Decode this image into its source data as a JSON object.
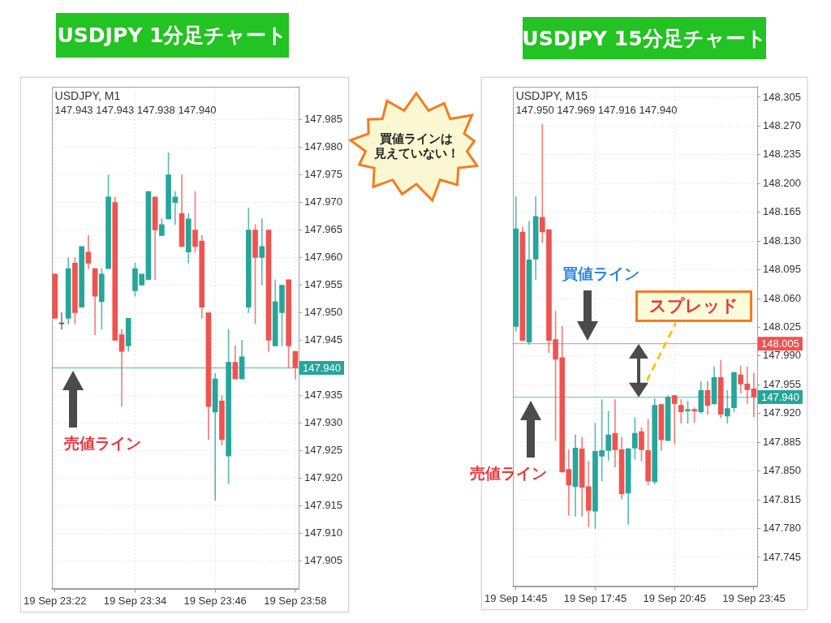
{
  "chart_data": [
    {
      "type": "candlestick",
      "title": "USDJPY 1分足チャート",
      "subtitle": "USDJPY, M1",
      "categories": [
        "19 Sep 23:22",
        null,
        null,
        null,
        null,
        null,
        null,
        null,
        null,
        null,
        null,
        null,
        "19 Sep 23:34",
        null,
        null,
        null,
        null,
        null,
        null,
        null,
        null,
        null,
        null,
        null,
        "19 Sep 23:46",
        null,
        null,
        null,
        null,
        null,
        null,
        null,
        null,
        null,
        null,
        null,
        "19 Sep 23:58"
      ],
      "ohlc": [
        [
          147.957,
          147.957,
          147.949,
          147.949
        ],
        [
          147.948,
          147.95,
          147.947,
          147.948
        ],
        [
          147.949,
          147.96,
          147.948,
          147.958
        ],
        [
          147.959,
          147.96,
          147.948,
          147.95
        ],
        [
          147.951,
          147.962,
          147.951,
          147.962
        ],
        [
          147.961,
          147.964,
          147.958,
          147.959
        ],
        [
          147.958,
          147.958,
          147.946,
          147.953
        ],
        [
          147.952,
          147.958,
          147.947,
          147.957
        ],
        [
          147.958,
          147.975,
          147.958,
          147.971
        ],
        [
          147.97,
          147.971,
          147.945,
          147.945
        ],
        [
          147.946,
          147.947,
          147.933,
          147.943
        ],
        [
          147.944,
          147.949,
          147.943,
          147.949
        ],
        [
          147.954,
          147.959,
          147.953,
          147.958
        ],
        [
          147.955,
          147.957,
          147.955,
          147.957
        ],
        [
          147.956,
          147.972,
          147.956,
          147.972
        ],
        [
          147.971,
          147.971,
          147.956,
          147.965
        ],
        [
          147.964,
          147.967,
          147.964,
          147.966
        ],
        [
          147.967,
          147.979,
          147.967,
          147.975
        ],
        [
          147.97,
          147.972,
          147.966,
          147.971
        ],
        [
          147.968,
          147.975,
          147.962,
          147.962
        ],
        [
          147.961,
          147.968,
          147.959,
          147.967
        ],
        [
          147.965,
          147.972,
          147.961,
          147.962
        ],
        [
          147.963,
          147.964,
          147.949,
          147.951
        ],
        [
          147.95,
          147.95,
          147.927,
          147.933
        ],
        [
          147.932,
          147.939,
          147.916,
          147.938
        ],
        [
          147.934,
          147.935,
          147.926,
          147.927
        ],
        [
          147.924,
          147.947,
          147.919,
          147.941
        ],
        [
          147.941,
          147.944,
          147.938,
          147.938
        ],
        [
          147.938,
          147.945,
          147.938,
          147.942
        ],
        [
          147.951,
          147.969,
          147.95,
          147.965
        ],
        [
          147.965,
          147.966,
          147.948,
          147.96
        ],
        [
          147.96,
          147.967,
          147.955,
          147.962
        ],
        [
          147.965,
          147.965,
          147.943,
          147.945
        ],
        [
          147.944,
          147.956,
          147.944,
          147.952
        ],
        [
          147.95,
          147.955,
          147.944,
          147.955
        ],
        [
          147.956,
          147.956,
          147.94,
          147.944
        ],
        [
          147.943,
          147.943,
          147.938,
          147.94
        ]
      ],
      "colors": [
        "#ef5350",
        "#555555",
        "#26a69a",
        "#ef5350",
        "#26a69a",
        "#ef5350",
        "#ef5350",
        "#26a69a",
        "#26a69a",
        "#ef5350",
        "#ef5350",
        "#26a69a",
        "#26a69a",
        "#26a69a",
        "#26a69a",
        "#ef5350",
        "#26a69a",
        "#26a69a",
        "#26a69a",
        "#ef5350",
        "#26a69a",
        "#ef5350",
        "#ef5350",
        "#ef5350",
        "#26a69a",
        "#ef5350",
        "#26a69a",
        "#ef5350",
        "#26a69a",
        "#26a69a",
        "#ef5350",
        "#26a69a",
        "#ef5350",
        "#26a69a",
        "#26a69a",
        "#ef5350",
        "#ef5350"
      ],
      "ylim": [
        147.9,
        147.991
      ],
      "yticks": [
        {
          "value": 147.905,
          "label": "147.905"
        },
        {
          "value": 147.91,
          "label": "147.910"
        },
        {
          "value": 147.915,
          "label": "147.915"
        },
        {
          "value": 147.92,
          "label": "147.920"
        },
        {
          "value": 147.925,
          "label": "147.925"
        },
        {
          "value": 147.93,
          "label": "147.930"
        },
        {
          "value": 147.935,
          "label": "147.935"
        },
        {
          "value": 147.945,
          "label": "147.945"
        },
        {
          "value": 147.95,
          "label": "147.950"
        },
        {
          "value": 147.955,
          "label": "147.955"
        },
        {
          "value": 147.96,
          "label": "147.960"
        },
        {
          "value": 147.965,
          "label": "147.965"
        },
        {
          "value": 147.97,
          "label": "147.970"
        },
        {
          "value": 147.975,
          "label": "147.975"
        },
        {
          "value": 147.98,
          "label": "147.980"
        },
        {
          "value": 147.985,
          "label": "147.985"
        }
      ],
      "grid": true,
      "ref_lines": [
        {
          "axis": "y",
          "value": 147.94,
          "label": "147.940",
          "color": "#26a69a"
        }
      ],
      "annotations": [
        "147.943 147.943 147.938 147.940",
        "買値ラインは見えていない！",
        "売値ライン"
      ]
    },
    {
      "type": "candlestick",
      "title": "USDJPY 15分足チャート",
      "subtitle": "USDJPY, M15",
      "categories": [
        "19 Sep 14:45",
        null,
        null,
        null,
        null,
        null,
        null,
        null,
        null,
        null,
        null,
        null,
        "19 Sep 17:45",
        null,
        null,
        null,
        null,
        null,
        null,
        null,
        null,
        null,
        null,
        null,
        "19 Sep 20:45",
        null,
        null,
        null,
        null,
        null,
        null,
        null,
        null,
        null,
        null,
        null,
        "19 Sep 23:45"
      ],
      "ohlc": [
        [
          148.026,
          148.184,
          148.02,
          148.145
        ],
        [
          148.141,
          148.147,
          148.009,
          148.009
        ],
        [
          148.007,
          148.154,
          148.004,
          148.107
        ],
        [
          148.108,
          148.184,
          148.083,
          148.16
        ],
        [
          148.159,
          148.272,
          148.128,
          148.141
        ],
        [
          148.144,
          148.144,
          147.994,
          148.009
        ],
        [
          148.01,
          148.045,
          147.887,
          147.986
        ],
        [
          147.988,
          148.026,
          147.848,
          147.849
        ],
        [
          147.852,
          147.876,
          147.796,
          147.833
        ],
        [
          147.831,
          147.894,
          147.795,
          147.878
        ],
        [
          147.877,
          147.891,
          147.795,
          147.83
        ],
        [
          147.831,
          147.862,
          147.782,
          147.802
        ],
        [
          147.801,
          147.908,
          147.78,
          147.874
        ],
        [
          147.868,
          147.937,
          147.838,
          147.875
        ],
        [
          147.875,
          147.923,
          147.863,
          147.894
        ],
        [
          147.896,
          147.937,
          147.855,
          147.876
        ],
        [
          147.876,
          147.891,
          147.816,
          147.822
        ],
        [
          147.823,
          147.878,
          147.785,
          147.877
        ],
        [
          147.878,
          147.915,
          147.864,
          147.896
        ],
        [
          147.898,
          147.903,
          147.862,
          147.876
        ],
        [
          147.875,
          147.913,
          147.833,
          147.838
        ],
        [
          147.837,
          147.938,
          147.834,
          147.93
        ],
        [
          147.931,
          147.931,
          147.875,
          147.888
        ],
        [
          147.887,
          147.942,
          147.887,
          147.94
        ],
        [
          147.942,
          147.942,
          147.883,
          147.932
        ],
        [
          147.93,
          147.937,
          147.908,
          147.922
        ],
        [
          147.923,
          147.935,
          147.908,
          147.925
        ],
        [
          147.925,
          147.927,
          147.909,
          147.923
        ],
        [
          147.922,
          147.959,
          147.92,
          147.948
        ],
        [
          147.948,
          147.959,
          147.919,
          147.93
        ],
        [
          147.932,
          147.977,
          147.931,
          147.964
        ],
        [
          147.964,
          147.985,
          147.915,
          147.919
        ],
        [
          147.917,
          147.948,
          147.908,
          147.926
        ],
        [
          147.927,
          147.97,
          147.922,
          147.97
        ],
        [
          147.967,
          147.978,
          147.945,
          147.956
        ],
        [
          147.956,
          147.977,
          147.932,
          147.949
        ],
        [
          147.95,
          147.969,
          147.916,
          147.94
        ]
      ],
      "colors": [
        "#26a69a",
        "#ef5350",
        "#26a69a",
        "#26a69a",
        "#ef5350",
        "#ef5350",
        "#ef5350",
        "#ef5350",
        "#ef5350",
        "#26a69a",
        "#ef5350",
        "#ef5350",
        "#26a69a",
        "#26a69a",
        "#26a69a",
        "#ef5350",
        "#ef5350",
        "#26a69a",
        "#26a69a",
        "#ef5350",
        "#ef5350",
        "#26a69a",
        "#ef5350",
        "#26a69a",
        "#ef5350",
        "#ef5350",
        "#26a69a",
        "#ef5350",
        "#26a69a",
        "#ef5350",
        "#26a69a",
        "#ef5350",
        "#26a69a",
        "#26a69a",
        "#ef5350",
        "#ef5350",
        "#ef5350"
      ],
      "ylim": [
        147.71,
        148.318
      ],
      "yticks": [
        {
          "value": 147.745,
          "label": "147.745"
        },
        {
          "value": 147.78,
          "label": "147.780"
        },
        {
          "value": 147.815,
          "label": "147.815"
        },
        {
          "value": 147.85,
          "label": "147.850"
        },
        {
          "value": 147.885,
          "label": "147.885"
        },
        {
          "value": 147.92,
          "label": "147.920"
        },
        {
          "value": 147.955,
          "label": "147.955"
        },
        {
          "value": 147.99,
          "label": "147.990"
        },
        {
          "value": 148.025,
          "label": "148.025"
        },
        {
          "value": 148.06,
          "label": "148.060"
        },
        {
          "value": 148.095,
          "label": "148.095"
        },
        {
          "value": 148.13,
          "label": "148.130"
        },
        {
          "value": 148.165,
          "label": "148.165"
        },
        {
          "value": 148.2,
          "label": "148.200"
        },
        {
          "value": 148.235,
          "label": "148.235"
        },
        {
          "value": 148.27,
          "label": "148.270"
        },
        {
          "value": 148.305,
          "label": "148.305"
        }
      ],
      "grid": true,
      "ref_lines": [
        {
          "axis": "y",
          "value": 148.005,
          "label": "148.005",
          "color": "#ef5350"
        },
        {
          "axis": "y",
          "value": 147.94,
          "label": "147.940",
          "color": "#26a69a"
        }
      ],
      "annotations": [
        "147.950 147.969 147.916 147.940",
        "買値ライン",
        "売値ライン",
        "スプレッド"
      ]
    }
  ]
}
